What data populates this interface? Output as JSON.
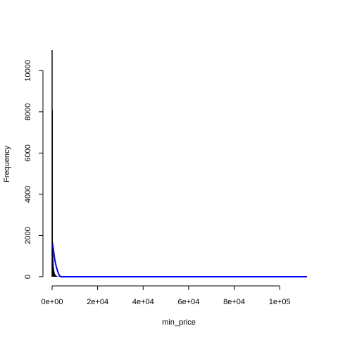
{
  "chart_data": {
    "type": "histogram",
    "title": "",
    "xlabel": "min_price",
    "ylabel": "Frequency",
    "xlim": [
      0,
      112000
    ],
    "ylim": [
      0,
      11000
    ],
    "x_ticks": [
      0,
      20000,
      40000,
      60000,
      80000,
      100000
    ],
    "x_tick_labels": [
      "0e+00",
      "2e+04",
      "4e+04",
      "6e+04",
      "8e+04",
      "1e+05"
    ],
    "y_ticks": [
      0,
      2000,
      4000,
      6000,
      8000,
      10000
    ],
    "y_tick_labels": [
      "0",
      "2000",
      "4000",
      "6000",
      "8000",
      "10000"
    ],
    "bins": [
      {
        "x": 0,
        "count": 11000
      },
      {
        "x": 100,
        "count": 8100
      },
      {
        "x": 200,
        "count": 1700
      },
      {
        "x": 300,
        "count": 1100
      },
      {
        "x": 400,
        "count": 800
      },
      {
        "x": 500,
        "count": 600
      },
      {
        "x": 600,
        "count": 450
      },
      {
        "x": 700,
        "count": 350
      },
      {
        "x": 800,
        "count": 280
      },
      {
        "x": 900,
        "count": 220
      },
      {
        "x": 1000,
        "count": 180
      },
      {
        "x": 1200,
        "count": 130
      },
      {
        "x": 1400,
        "count": 90
      },
      {
        "x": 1700,
        "count": 60
      },
      {
        "x": 2000,
        "count": 40
      },
      {
        "x": 2500,
        "count": 20
      },
      {
        "x": 3000,
        "count": 10
      }
    ],
    "density_series": {
      "name": "density",
      "color": "#0000ff",
      "points": [
        [
          0,
          1500
        ],
        [
          300,
          1520
        ],
        [
          700,
          1200
        ],
        [
          1200,
          800
        ],
        [
          1800,
          500
        ],
        [
          2400,
          280
        ],
        [
          3000,
          100
        ],
        [
          3500,
          20
        ],
        [
          4000,
          0
        ],
        [
          112000,
          0
        ]
      ]
    },
    "bar_color": "#000000"
  }
}
